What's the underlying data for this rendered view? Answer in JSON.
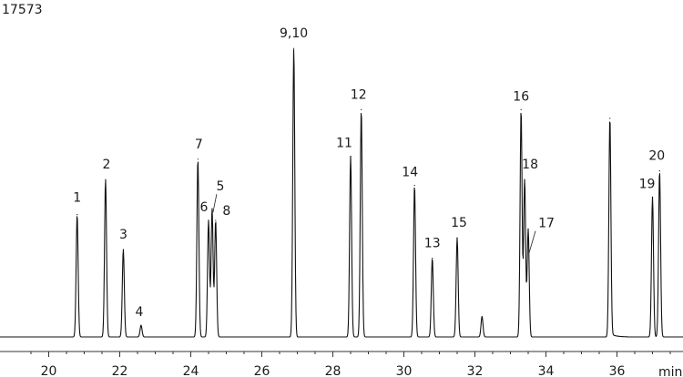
{
  "chart_data": {
    "type": "line",
    "sample_id": "17573",
    "title": "",
    "xlabel": "min",
    "ylabel": "",
    "xlim": [
      19.3,
      38.7
    ],
    "ylim": [
      0,
      100
    ],
    "grid": false,
    "legend": "none",
    "x_ticks": [
      {
        "label": "20",
        "value": 20
      },
      {
        "label": "22",
        "value": 22
      },
      {
        "label": "24",
        "value": 24
      },
      {
        "label": "26",
        "value": 26
      },
      {
        "label": "28",
        "value": 28
      },
      {
        "label": "30",
        "value": 30
      },
      {
        "label": "32",
        "value": 32
      },
      {
        "label": "34",
        "value": 34
      },
      {
        "label": "36",
        "value": 36
      }
    ],
    "baseline": 0,
    "peaks": [
      {
        "label": "1",
        "rt": 20.8,
        "height": 42
      },
      {
        "label": "2",
        "rt": 21.6,
        "height": 54
      },
      {
        "label": "3",
        "rt": 22.1,
        "height": 30
      },
      {
        "label": "4",
        "rt": 22.6,
        "height": 4
      },
      {
        "label": "7",
        "rt": 24.2,
        "height": 61
      },
      {
        "label": "6",
        "rt": 24.5,
        "height": 40
      },
      {
        "label": "5",
        "rt": 24.6,
        "height": 44
      },
      {
        "label": "8",
        "rt": 24.7,
        "height": 40
      },
      {
        "label": "9,10",
        "rt": 26.9,
        "height": 99
      },
      {
        "label": "11",
        "rt": 28.5,
        "height": 62
      },
      {
        "label": "12",
        "rt": 28.8,
        "height": 78
      },
      {
        "label": "14",
        "rt": 30.3,
        "height": 52
      },
      {
        "label": "13",
        "rt": 30.8,
        "height": 27
      },
      {
        "label": "15",
        "rt": 31.5,
        "height": 34
      },
      {
        "label": "",
        "rt": 32.2,
        "height": 7
      },
      {
        "label": "16",
        "rt": 33.3,
        "height": 78
      },
      {
        "label": "18",
        "rt": 33.4,
        "height": 54
      },
      {
        "label": "17",
        "rt": 33.5,
        "height": 37
      },
      {
        "label": "",
        "rt": 35.8,
        "height": 75
      },
      {
        "label": "19",
        "rt": 37.0,
        "height": 48
      },
      {
        "label": "20",
        "rt": 37.2,
        "height": 57
      }
    ]
  }
}
